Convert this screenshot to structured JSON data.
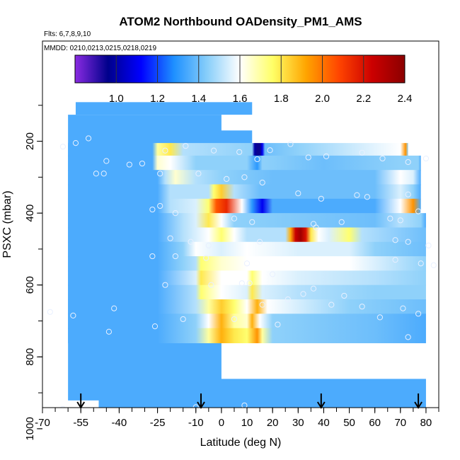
{
  "chart_data": {
    "type": "heatmap",
    "title": "ATOM2 Northbound OADensity_PM1_AMS",
    "subtitle_flights": "Flts: 6,7,8,9,10",
    "subtitle_dates": "MMDD: 0210,0213,0215,0218,0219",
    "xlabel": "Latitude (deg N)",
    "ylabel": "PSXC (mbar)",
    "xlim": [
      -70,
      85
    ],
    "ylim": [
      1020,
      0
    ],
    "x_ticks": [
      -70,
      -55,
      -40,
      -25,
      -10,
      0,
      10,
      20,
      30,
      40,
      50,
      60,
      70,
      80
    ],
    "x_tick_labels": [
      "-70",
      "-55",
      "-40",
      "-25",
      "-10",
      "0",
      "10",
      "20",
      "30",
      "40",
      "50",
      "60",
      "70",
      "80"
    ],
    "y_ticks": [
      200,
      400,
      600,
      800,
      1000
    ],
    "y_tick_labels": [
      "200",
      "400",
      "600",
      "800",
      "1000"
    ],
    "colorbar": {
      "min": 0.8,
      "max": 2.4,
      "tick_values": [
        1.0,
        1.2,
        1.4,
        1.6,
        1.8,
        2.0,
        2.2,
        2.4
      ],
      "tick_labels": [
        "1.0",
        "1.2",
        "1.4",
        "1.6",
        "1.8",
        "2.0",
        "2.2",
        "2.4"
      ],
      "colors": [
        "#8a2be2",
        "#00008b",
        "#0000ff",
        "#1e90ff",
        "#87cefa",
        "#ffffff",
        "#ffff66",
        "#ffa500",
        "#ff4500",
        "#cc0000",
        "#8b0000"
      ],
      "divisions": [
        1.0,
        1.2,
        1.4,
        1.6,
        1.8,
        2.0,
        2.2
      ]
    },
    "background_value": 1.35,
    "layers": [
      {
        "p": [
          170,
          205
        ],
        "x": [
          -57,
          12
        ],
        "v": 1.35
      },
      {
        "p": [
          205,
          240
        ],
        "x": [
          -60,
          -27,
          -25,
          -20,
          -15,
          12,
          13,
          14,
          15,
          16,
          17,
          30,
          70,
          72,
          73
        ],
        "v": [
          1.35,
          1.35,
          1.7,
          1.8,
          1.5,
          1.45,
          1.0,
          0.95,
          0.95,
          1.1,
          1.4,
          1.45,
          1.6,
          1.95,
          1.45
        ]
      },
      {
        "p": [
          240,
          280
        ],
        "x": [
          -60,
          -27,
          -25,
          -20,
          -10,
          10,
          14,
          16,
          40,
          70,
          77,
          78
        ],
        "v": [
          1.35,
          1.35,
          1.65,
          1.6,
          1.45,
          1.45,
          1.3,
          1.45,
          1.4,
          1.45,
          1.45,
          1.35
        ]
      },
      {
        "p": [
          280,
          320
        ],
        "x": [
          -60,
          -25,
          -22,
          -18,
          -10,
          0,
          20,
          60,
          70,
          75,
          78
        ],
        "v": [
          1.35,
          1.35,
          1.5,
          1.65,
          1.5,
          1.45,
          1.4,
          1.4,
          1.6,
          1.55,
          1.35
        ]
      },
      {
        "p": [
          320,
          360
        ],
        "x": [
          -60,
          -25,
          -20,
          -5,
          -3,
          0,
          5,
          15,
          60,
          70,
          75,
          78
        ],
        "v": [
          1.35,
          1.35,
          1.5,
          1.5,
          1.75,
          1.85,
          1.5,
          1.4,
          1.4,
          1.55,
          1.45,
          1.35
        ]
      },
      {
        "p": [
          360,
          400
        ],
        "x": [
          -60,
          -25,
          -20,
          -10,
          -5,
          -2,
          2,
          8,
          12,
          16,
          20,
          60,
          70,
          75,
          78
        ],
        "v": [
          1.35,
          1.35,
          1.5,
          1.55,
          1.75,
          2.05,
          2.15,
          1.6,
          1.3,
          1.1,
          1.35,
          1.35,
          1.6,
          1.95,
          1.35
        ]
      },
      {
        "p": [
          400,
          440
        ],
        "x": [
          -60,
          -25,
          -15,
          -10,
          -5,
          0,
          5,
          60,
          70,
          78,
          80
        ],
        "v": [
          1.35,
          1.35,
          1.5,
          1.55,
          1.8,
          1.6,
          1.45,
          1.4,
          1.5,
          1.45,
          1.35
        ]
      },
      {
        "p": [
          440,
          480
        ],
        "x": [
          -60,
          -25,
          -15,
          -5,
          0,
          5,
          10,
          25,
          27,
          29,
          31,
          33,
          35,
          38,
          42,
          50,
          55,
          80
        ],
        "v": [
          1.35,
          1.35,
          1.5,
          1.6,
          1.75,
          1.6,
          1.5,
          1.5,
          1.9,
          2.25,
          2.35,
          2.2,
          1.8,
          1.6,
          1.55,
          1.75,
          1.5,
          1.4
        ]
      },
      {
        "p": [
          480,
          520
        ],
        "x": [
          -60,
          -25,
          -15,
          -10,
          0,
          10,
          30,
          50,
          60,
          80
        ],
        "v": [
          1.35,
          1.35,
          1.45,
          1.6,
          1.55,
          1.6,
          1.55,
          1.55,
          1.45,
          1.4
        ]
      },
      {
        "p": [
          520,
          560
        ],
        "x": [
          -60,
          -25,
          -15,
          -10,
          -8,
          0,
          10,
          30,
          50,
          80
        ],
        "v": [
          1.35,
          1.35,
          1.45,
          1.5,
          1.75,
          1.65,
          1.6,
          1.6,
          1.6,
          1.45
        ]
      },
      {
        "p": [
          560,
          600
        ],
        "x": [
          -60,
          -25,
          -10,
          -8,
          0,
          10,
          12,
          16,
          30,
          60,
          80
        ],
        "v": [
          1.35,
          1.35,
          1.55,
          1.8,
          1.6,
          1.6,
          1.75,
          1.6,
          1.55,
          1.5,
          1.45
        ]
      },
      {
        "p": [
          600,
          640
        ],
        "x": [
          -60,
          -25,
          -10,
          -8,
          0,
          10,
          12,
          16,
          30,
          60,
          80
        ],
        "v": [
          1.35,
          1.35,
          1.5,
          1.75,
          1.6,
          1.55,
          1.8,
          1.55,
          1.5,
          1.45,
          1.45
        ]
      },
      {
        "p": [
          640,
          680
        ],
        "x": [
          -60,
          -25,
          -10,
          -5,
          0,
          5,
          10,
          14,
          18,
          50,
          80
        ],
        "v": [
          1.35,
          1.35,
          1.5,
          1.7,
          1.85,
          1.75,
          1.6,
          1.9,
          1.6,
          1.45,
          1.4
        ]
      },
      {
        "p": [
          680,
          720
        ],
        "x": [
          -60,
          -25,
          -10,
          -5,
          0,
          5,
          10,
          12,
          15,
          20,
          60,
          80
        ],
        "v": [
          1.35,
          1.35,
          1.45,
          1.6,
          1.9,
          1.7,
          1.65,
          1.9,
          1.6,
          1.45,
          1.4,
          1.35
        ]
      },
      {
        "p": [
          720,
          760
        ],
        "x": [
          -60,
          -25,
          -10,
          -5,
          0,
          5,
          10,
          14,
          16,
          20,
          60,
          80
        ],
        "v": [
          1.35,
          1.35,
          1.45,
          1.7,
          1.9,
          1.8,
          1.75,
          1.95,
          1.7,
          1.45,
          1.4,
          1.35
        ]
      }
    ],
    "points": [
      {
        "x": -62,
        "p": 215
      },
      {
        "x": -57,
        "p": 205
      },
      {
        "x": -52,
        "p": 192
      },
      {
        "x": -45,
        "p": 255
      },
      {
        "x": -36,
        "p": 265
      },
      {
        "x": -31,
        "p": 262
      },
      {
        "x": -22,
        "p": 226
      },
      {
        "x": -14,
        "p": 213
      },
      {
        "x": -3,
        "p": 226
      },
      {
        "x": 7,
        "p": 230
      },
      {
        "x": 14,
        "p": 250
      },
      {
        "x": 19,
        "p": 225
      },
      {
        "x": 27,
        "p": 208
      },
      {
        "x": 34,
        "p": 245
      },
      {
        "x": 41,
        "p": 242
      },
      {
        "x": 55,
        "p": 232
      },
      {
        "x": 63,
        "p": 248
      },
      {
        "x": 73,
        "p": 258
      },
      {
        "x": 80,
        "p": 248
      },
      {
        "x": -49,
        "p": 290
      },
      {
        "x": -46,
        "p": 290
      },
      {
        "x": -24,
        "p": 290
      },
      {
        "x": -9,
        "p": 290
      },
      {
        "x": 2,
        "p": 305
      },
      {
        "x": 9,
        "p": 300
      },
      {
        "x": 16,
        "p": 315
      },
      {
        "x": 30,
        "p": 345
      },
      {
        "x": 39,
        "p": 360
      },
      {
        "x": 53,
        "p": 350
      },
      {
        "x": 57,
        "p": 355
      },
      {
        "x": 73,
        "p": 348
      },
      {
        "x": -24,
        "p": 380
      },
      {
        "x": -27,
        "p": 390
      },
      {
        "x": -18,
        "p": 400
      },
      {
        "x": 5,
        "p": 415
      },
      {
        "x": 12,
        "p": 425
      },
      {
        "x": 36,
        "p": 430
      },
      {
        "x": 37,
        "p": 440
      },
      {
        "x": 47,
        "p": 425
      },
      {
        "x": 66,
        "p": 415
      },
      {
        "x": 70,
        "p": 420
      },
      {
        "x": 77,
        "p": 395
      },
      {
        "x": -20,
        "p": 470
      },
      {
        "x": -12,
        "p": 480
      },
      {
        "x": -5,
        "p": 490
      },
      {
        "x": 15,
        "p": 480
      },
      {
        "x": 68,
        "p": 475
      },
      {
        "x": 73,
        "p": 480
      },
      {
        "x": 81,
        "p": 490
      },
      {
        "x": -27,
        "p": 520
      },
      {
        "x": -18,
        "p": 520
      },
      {
        "x": -6,
        "p": 525
      },
      {
        "x": 10,
        "p": 540
      },
      {
        "x": 20,
        "p": 570
      },
      {
        "x": 68,
        "p": 530
      },
      {
        "x": 78,
        "p": 540
      },
      {
        "x": 83,
        "p": 545
      },
      {
        "x": -22,
        "p": 600
      },
      {
        "x": -4,
        "p": 600
      },
      {
        "x": 8,
        "p": 595
      },
      {
        "x": 11,
        "p": 595
      },
      {
        "x": 36,
        "p": 610
      },
      {
        "x": 32,
        "p": 625
      },
      {
        "x": 26,
        "p": 640
      },
      {
        "x": -67,
        "p": 675
      },
      {
        "x": -58,
        "p": 685
      },
      {
        "x": -42,
        "p": 665
      },
      {
        "x": -26,
        "p": 715
      },
      {
        "x": -15,
        "p": 695
      },
      {
        "x": 5,
        "p": 695
      },
      {
        "x": 16,
        "p": 655
      },
      {
        "x": 22,
        "p": 710
      },
      {
        "x": 43,
        "p": 655
      },
      {
        "x": 48,
        "p": 630
      },
      {
        "x": 55,
        "p": 660
      },
      {
        "x": 62,
        "p": 690
      },
      {
        "x": 71,
        "p": 665
      },
      {
        "x": 77,
        "p": 680
      },
      {
        "x": -44,
        "p": 730
      },
      {
        "x": 73,
        "p": 745
      },
      {
        "x": -62,
        "p": 945
      },
      {
        "x": -56,
        "p": 950
      },
      {
        "x": -10,
        "p": 940
      },
      {
        "x": 9,
        "p": 935
      },
      {
        "x": 57,
        "p": 955
      },
      {
        "x": -2,
        "p": 995
      },
      {
        "x": 5,
        "p": 990
      },
      {
        "x": -27,
        "p": 1000
      },
      {
        "x": 12,
        "p": 1000
      },
      {
        "x": 22,
        "p": 1000
      },
      {
        "x": 37,
        "p": 1000
      },
      {
        "x": 48,
        "p": 1000
      },
      {
        "x": 75,
        "p": 990
      }
    ],
    "arrows_lat": [
      -55,
      -8,
      39,
      77
    ],
    "grid": false
  }
}
